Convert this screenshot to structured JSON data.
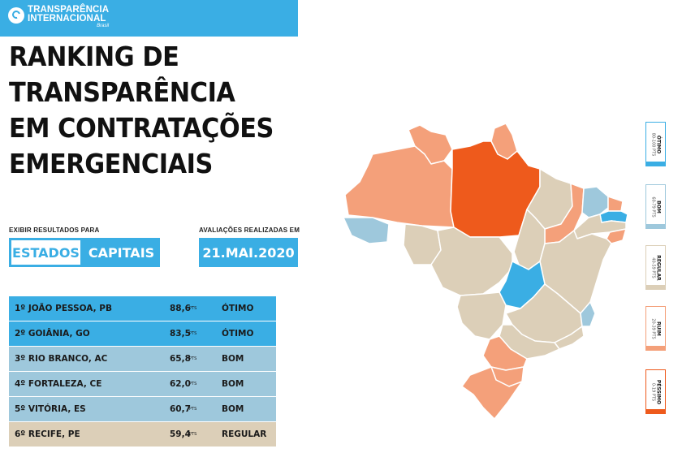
{
  "brand": {
    "name_line1": "TRANSPARÊNCIA",
    "name_line2": "INTERNACIONAL",
    "country": "Brasil"
  },
  "title_lines": [
    "RANKING DE",
    "TRANSPARÊNCIA",
    "EM CONTRATAÇÕES",
    "EMERGENCIAIS"
  ],
  "controls": {
    "show_results_label": "EXIBIR RESULTADOS PARA",
    "option_states": "ESTADOS",
    "option_capitals": "CAPITAIS",
    "evaluations_label": "AVALIAÇÕES REALIZADAS EM",
    "date": "21.MAI.2020"
  },
  "ranking": [
    {
      "name": "1º JOÃO PESSOA, PB",
      "score": "88,6",
      "unit": "PTS",
      "category": "ÓTIMO",
      "color": "#3aaee4"
    },
    {
      "name": "2º GOIÂNIA, GO",
      "score": "83,5",
      "unit": "PTS",
      "category": "ÓTIMO",
      "color": "#3aaee4"
    },
    {
      "name": "3º RIO BRANCO, AC",
      "score": "65,8",
      "unit": "PTS",
      "category": "BOM",
      "color": "#9ec8dc"
    },
    {
      "name": "4º FORTALEZA, CE",
      "score": "62,0",
      "unit": "PTS",
      "category": "BOM",
      "color": "#9ec8dc"
    },
    {
      "name": "5º VITÓRIA, ES",
      "score": "60,7",
      "unit": "PTS",
      "category": "BOM",
      "color": "#9ec8dc"
    },
    {
      "name": "6º RECIFE, PE",
      "score": "59,4",
      "unit": "PTS",
      "category": "REGULAR",
      "color": "#dccfb8"
    }
  ],
  "legend": [
    {
      "label": "ÓTIMO",
      "range": "80-100 PTS",
      "color": "#3aaee4"
    },
    {
      "label": "BOM",
      "range": "60-79 PTS",
      "color": "#9ec8dc"
    },
    {
      "label": "REGULAR",
      "range": "40-59 PTS",
      "color": "#dccfb8"
    },
    {
      "label": "RUIM",
      "range": "20-39 PTS",
      "color": "#f4a07a"
    },
    {
      "label": "PÉSSIMO",
      "range": "0-19 PTS",
      "color": "#ee5a1c"
    }
  ],
  "map_colors": {
    "otimo": "#3aaee4",
    "bom": "#9ec8dc",
    "regular": "#dccfb8",
    "ruim": "#f4a07a",
    "pessimo": "#ee5a1c"
  }
}
